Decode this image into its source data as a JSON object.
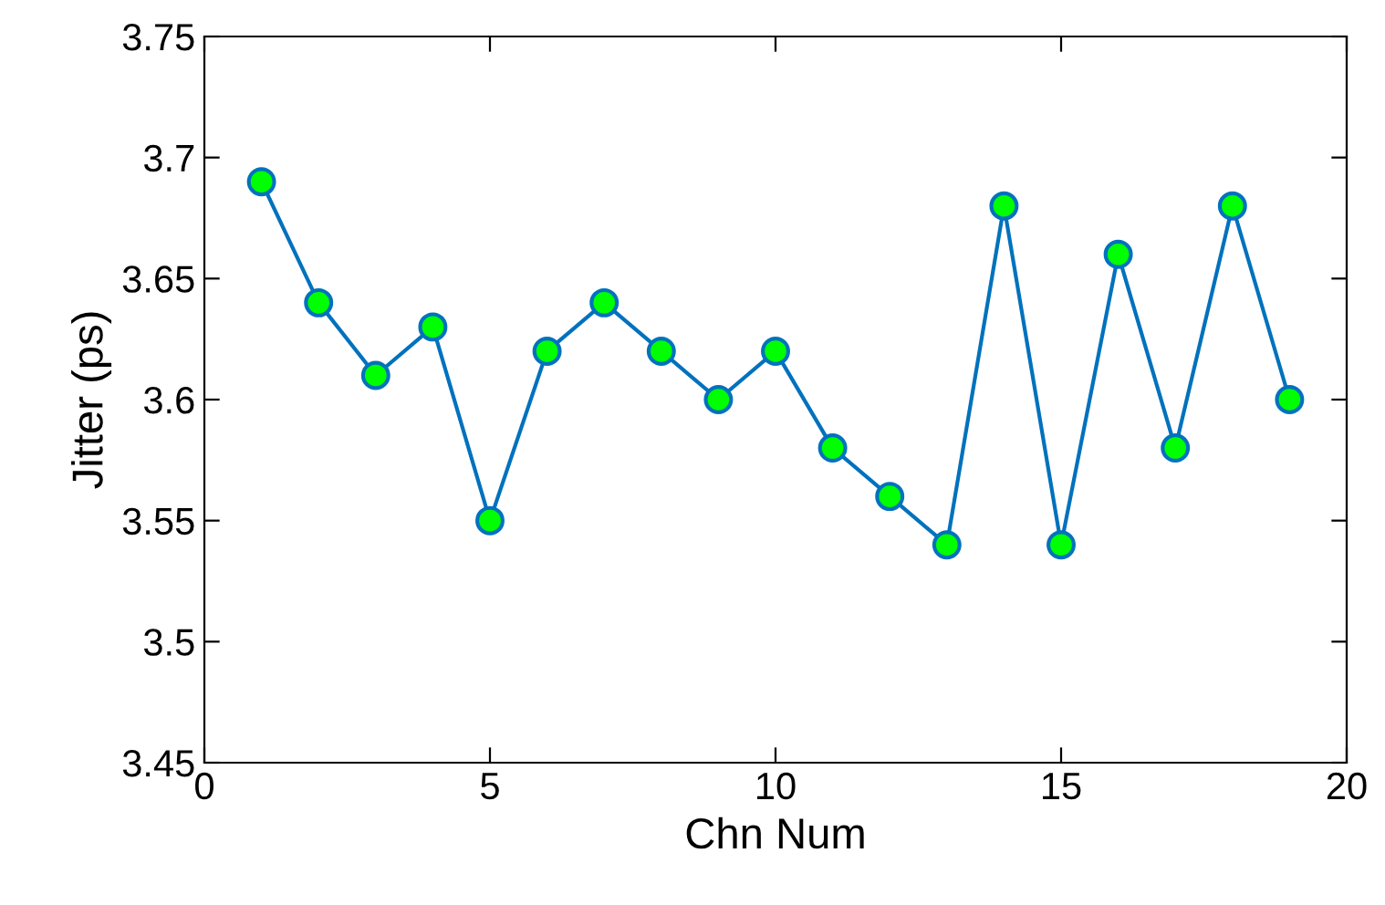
{
  "chart_data": {
    "type": "line",
    "xlabel": "Chn Num",
    "ylabel": "Jitter (ps)",
    "x": [
      1,
      2,
      3,
      4,
      5,
      6,
      7,
      8,
      9,
      10,
      11,
      12,
      13,
      14,
      15,
      16,
      17,
      18,
      19
    ],
    "series": [
      {
        "color": "#0072bd",
        "colors": [
          "#00ff00",
          "#00ff00",
          "#00ff00",
          "#00ff00",
          "#00ff00",
          "#00ff00",
          "#00ff00",
          "#00ff00",
          "#00ff00",
          "#00ff00",
          "#00ff00",
          "#00ff00",
          "#00ff00",
          "#00ff00",
          "#00ff00",
          "#00ff00",
          "#00ff00",
          "#00ff00",
          "#00ff00"
        ],
        "values": [
          3.69,
          3.64,
          3.61,
          3.63,
          3.55,
          3.62,
          3.64,
          3.62,
          3.6,
          3.62,
          3.58,
          3.56,
          3.54,
          3.68,
          3.54,
          3.66,
          3.58,
          3.68,
          3.6
        ]
      }
    ],
    "xlim": [
      0,
      20
    ],
    "xticks": [
      0,
      5,
      10,
      15,
      20
    ],
    "ylim": [
      3.45,
      3.75
    ],
    "yticks": [
      {
        "value": 3.45,
        "label": "3.45"
      },
      {
        "value": 3.5,
        "label": "3.5"
      },
      {
        "value": 3.55,
        "label": "3.55"
      },
      {
        "value": 3.6,
        "label": "3.6"
      },
      {
        "value": 3.65,
        "label": "3.65"
      },
      {
        "value": 3.7,
        "label": "3.7"
      },
      {
        "value": 3.75,
        "label": "3.75"
      }
    ],
    "marker": "circle",
    "line_style": "solid",
    "grid": false,
    "legend": false
  }
}
